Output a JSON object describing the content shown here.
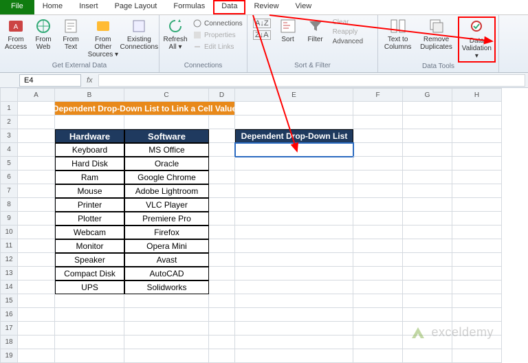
{
  "tabs": {
    "file": "File",
    "items": [
      "Home",
      "Insert",
      "Page Layout",
      "Formulas",
      "Data",
      "Review",
      "View"
    ],
    "active_index": 4
  },
  "ribbon": {
    "ext_data": {
      "title": "Get External Data",
      "items": [
        "From\nAccess",
        "From\nWeb",
        "From\nText",
        "From Other\nSources ▾",
        "Existing\nConnections"
      ]
    },
    "connections": {
      "title": "Connections",
      "refresh": "Refresh\nAll ▾",
      "sub": [
        "Connections",
        "Properties",
        "Edit Links"
      ]
    },
    "sort_filter": {
      "title": "Sort & Filter",
      "sort_az": "A↓Z",
      "sort_za": "Z↓A",
      "sort": "Sort",
      "filter": "Filter",
      "sub": [
        "Clear",
        "Reapply",
        "Advanced"
      ]
    },
    "data_tools": {
      "title": "Data Tools",
      "items": [
        "Text to\nColumns",
        "Remove\nDuplicates",
        "Data\nValidation ▾"
      ]
    }
  },
  "formula_bar": {
    "name_box": "E4",
    "fx": "fx"
  },
  "columns": [
    "A",
    "B",
    "C",
    "D",
    "E",
    "F",
    "G",
    "H"
  ],
  "title_row": "Dependent Drop-Down List to Link a Cell Value",
  "headers": {
    "b": "Hardware",
    "c": "Software"
  },
  "dep_header": "Dependent Drop-Down List",
  "data_rows": [
    [
      "Keyboard",
      "MS Office"
    ],
    [
      "Hard Disk",
      "Oracle"
    ],
    [
      "Ram",
      "Google Chrome"
    ],
    [
      "Mouse",
      "Adobe Lightroom"
    ],
    [
      "Printer",
      "VLC Player"
    ],
    [
      "Plotter",
      "Premiere Pro"
    ],
    [
      "Webcam",
      "Firefox"
    ],
    [
      "Monitor",
      "Opera Mini"
    ],
    [
      "Speaker",
      "Avast"
    ],
    [
      "Compact Disk",
      "AutoCAD"
    ],
    [
      "UPS",
      "Solidworks"
    ]
  ],
  "watermark": "exceldemy",
  "colors": {
    "highlight": "#ff0000",
    "title_bg": "#e8891a",
    "header_bg": "#1f3a5f",
    "sel": "#2a6ac0"
  }
}
